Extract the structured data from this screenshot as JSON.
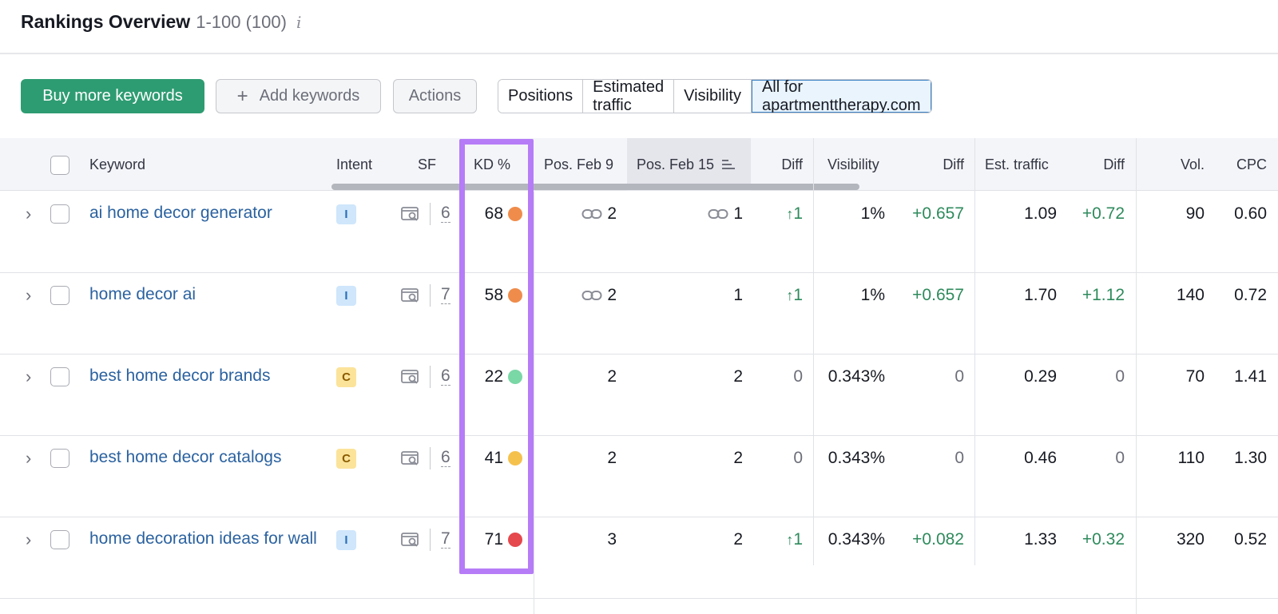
{
  "header": {
    "title": "Rankings Overview",
    "range": "1-100 (100)",
    "info_icon": "i"
  },
  "toolbar": {
    "buy_label": "Buy more keywords",
    "add_icon": "+",
    "add_label": "Add keywords",
    "actions_label": "Actions",
    "segments": [
      "Positions",
      "Estimated traffic",
      "Visibility",
      "All for apartmenttherapy.com"
    ],
    "active_segment": "All for apartmenttherapy.com"
  },
  "columns": {
    "keyword": "Keyword",
    "intent": "Intent",
    "sf": "SF",
    "kd": "KD %",
    "pos_feb9": "Pos. Feb 9",
    "pos_feb15": "Pos. Feb 15",
    "diff": "Diff",
    "visibility": "Visibility",
    "vis_diff": "Diff",
    "est_traffic": "Est. traffic",
    "traffic_diff": "Diff",
    "vol": "Vol.",
    "cpc": "CPC"
  },
  "colors": {
    "kd_orange": "#ef8c4b",
    "kd_green": "#7ad7a6",
    "kd_yellow": "#f5c14d",
    "kd_red": "#e5484d",
    "highlight": "#b67cf7",
    "primary": "#2e9c72"
  },
  "rows": [
    {
      "keyword": "ai home decor generator",
      "intent": "I",
      "sf": "6",
      "kd": "68",
      "kd_color": "#ef8c4b",
      "pos_feb9": "2",
      "pos_feb9_link": true,
      "pos_feb15": "1",
      "pos_feb15_link": true,
      "diff": "1",
      "diff_up": true,
      "visibility": "1%",
      "vis_diff": "+0.657",
      "est_traffic": "1.09",
      "traffic_diff": "+0.72",
      "vol": "90",
      "cpc": "0.60"
    },
    {
      "keyword": "home decor ai",
      "intent": "I",
      "sf": "7",
      "kd": "58",
      "kd_color": "#ef8c4b",
      "pos_feb9": "2",
      "pos_feb9_link": true,
      "pos_feb15": "1",
      "pos_feb15_link": false,
      "diff": "1",
      "diff_up": true,
      "visibility": "1%",
      "vis_diff": "+0.657",
      "est_traffic": "1.70",
      "traffic_diff": "+1.12",
      "vol": "140",
      "cpc": "0.72"
    },
    {
      "keyword": "best home decor brands",
      "intent": "C",
      "sf": "6",
      "kd": "22",
      "kd_color": "#7ad7a6",
      "pos_feb9": "2",
      "pos_feb9_link": false,
      "pos_feb15": "2",
      "pos_feb15_link": false,
      "diff": "0",
      "diff_up": false,
      "visibility": "0.343%",
      "vis_diff": "0",
      "est_traffic": "0.29",
      "traffic_diff": "0",
      "vol": "70",
      "cpc": "1.41"
    },
    {
      "keyword": "best home decor catalogs",
      "intent": "C",
      "sf": "6",
      "kd": "41",
      "kd_color": "#f5c14d",
      "pos_feb9": "2",
      "pos_feb9_link": false,
      "pos_feb15": "2",
      "pos_feb15_link": false,
      "diff": "0",
      "diff_up": false,
      "visibility": "0.343%",
      "vis_diff": "0",
      "est_traffic": "0.46",
      "traffic_diff": "0",
      "vol": "110",
      "cpc": "1.30"
    },
    {
      "keyword": "home decoration ideas for wall",
      "intent": "I",
      "sf": "7",
      "kd": "71",
      "kd_color": "#e5484d",
      "pos_feb9": "3",
      "pos_feb9_link": false,
      "pos_feb15": "2",
      "pos_feb15_link": false,
      "diff": "1",
      "diff_up": true,
      "visibility": "0.343%",
      "vis_diff": "+0.082",
      "est_traffic": "1.33",
      "traffic_diff": "+0.32",
      "vol": "320",
      "cpc": "0.52"
    }
  ]
}
